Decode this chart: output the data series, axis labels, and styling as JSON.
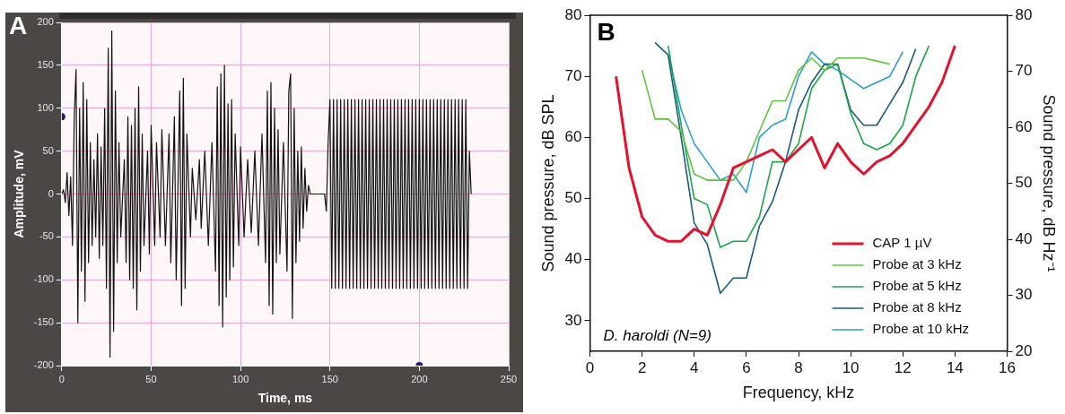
{
  "chart_data": [
    {
      "type": "line",
      "xlabel": "Time, ms",
      "ylabel": "Amplitude, mV",
      "xlim": [
        0,
        250
      ],
      "xticks": [
        0,
        50,
        100,
        150,
        200,
        250
      ],
      "ylim": [
        -200,
        200
      ],
      "yticks": [
        -200,
        -150,
        -100,
        -50,
        0,
        50,
        100,
        150,
        200
      ],
      "grid": true,
      "marker": "none",
      "annotations": [
        "A"
      ],
      "series": [
        {
          "color": "#111111",
          "x": [
            0,
            1,
            2,
            3,
            4,
            5,
            6,
            7,
            8,
            9,
            10,
            11,
            12,
            13,
            14,
            15,
            16,
            17,
            18,
            19,
            20,
            21,
            22,
            23,
            24,
            25,
            26,
            27,
            28,
            29,
            30,
            31,
            32,
            33,
            35,
            36,
            37,
            38,
            39,
            40,
            41,
            42,
            43,
            44,
            45,
            46,
            48,
            49,
            50,
            52,
            53,
            55,
            56,
            58,
            60,
            61,
            63,
            64,
            66,
            67,
            68,
            69,
            70,
            72,
            73,
            75,
            77,
            78,
            80,
            82,
            84,
            86,
            87,
            88,
            89,
            90,
            91,
            92,
            93,
            94,
            95,
            96,
            97,
            99,
            100,
            102,
            104,
            106,
            108,
            110,
            112,
            114,
            115,
            116,
            117,
            118,
            119,
            120,
            121,
            122,
            124,
            126,
            127,
            128,
            129,
            130,
            131,
            132,
            133,
            134,
            135,
            136,
            137,
            138,
            139,
            147,
            148,
            149,
            150,
            151,
            152,
            153,
            154,
            155,
            156,
            157,
            158,
            159,
            160,
            161,
            162,
            163,
            164,
            165,
            166,
            167,
            168,
            169,
            170,
            171,
            172,
            173,
            174,
            175,
            176,
            177,
            178,
            179,
            180,
            181,
            182,
            183,
            184,
            185,
            186,
            187,
            188,
            189,
            190,
            191,
            192,
            193,
            194,
            195,
            196,
            197,
            198,
            199,
            200,
            201,
            202,
            203,
            204,
            205,
            206,
            207,
            208,
            209,
            210,
            211,
            212,
            213,
            214,
            215,
            216,
            217,
            218,
            219,
            220,
            221,
            222,
            223,
            224,
            225,
            226,
            227,
            228,
            229
          ],
          "values": [
            0,
            5,
            -10,
            25,
            -25,
            20,
            -60,
            90,
            145,
            -150,
            100,
            -90,
            130,
            -125,
            110,
            -80,
            60,
            -60,
            40,
            -50,
            70,
            -75,
            55,
            -60,
            100,
            -110,
            170,
            -190,
            190,
            -160,
            120,
            -80,
            60,
            -50,
            40,
            -80,
            90,
            -100,
            80,
            -110,
            100,
            -135,
            125,
            -90,
            70,
            -60,
            50,
            -70,
            80,
            -60,
            60,
            -50,
            75,
            -60,
            70,
            -80,
            90,
            -100,
            120,
            -130,
            135,
            -110,
            70,
            -50,
            30,
            -30,
            40,
            -40,
            50,
            -60,
            60,
            -90,
            125,
            -130,
            140,
            -155,
            150,
            -120,
            105,
            -100,
            110,
            -85,
            70,
            -60,
            55,
            -50,
            40,
            -45,
            50,
            -60,
            70,
            -80,
            120,
            -130,
            130,
            -140,
            100,
            -80,
            75,
            -70,
            60,
            -90,
            120,
            140,
            -145,
            100,
            -80,
            50,
            -55,
            55,
            -40,
            30,
            -20,
            10,
            0,
            0,
            -20,
            60,
            110,
            -110,
            110,
            -110,
            110,
            -110,
            110,
            -110,
            110,
            -110,
            110,
            -110,
            110,
            -110,
            110,
            -110,
            110,
            -110,
            110,
            -110,
            110,
            -110,
            110,
            -110,
            110,
            -110,
            110,
            -110,
            110,
            -110,
            110,
            -110,
            110,
            -110,
            110,
            -110,
            110,
            -110,
            110,
            -110,
            110,
            -110,
            110,
            -110,
            110,
            -110,
            110,
            -110,
            110,
            -110,
            110,
            -110,
            110,
            -110,
            110,
            -110,
            110,
            -110,
            110,
            -110,
            110,
            -110,
            110,
            -110,
            110,
            -110,
            110,
            -110,
            110,
            -110,
            110,
            -110,
            110,
            -110,
            110,
            -110,
            110,
            -110,
            50,
            0
          ]
        },
        {
          "type": "scatter",
          "marker": "circle",
          "color": "#2a1a6e",
          "x": [
            0,
            200
          ],
          "values": [
            90,
            -200
          ]
        }
      ]
    },
    {
      "type": "line",
      "xlabel": "Frequency, kHz",
      "ylabel": "Sound pressure, dB SPL",
      "y2label": "Sound pressure, dB Hz⁻¹",
      "xlim": [
        0,
        16
      ],
      "xticks": [
        0,
        2,
        4,
        6,
        8,
        10,
        12,
        14,
        16
      ],
      "ylim": [
        25,
        80
      ],
      "yticks": [
        30,
        40,
        50,
        60,
        70,
        80
      ],
      "y2lim": [
        20,
        80
      ],
      "y2ticks": [
        20,
        30,
        40,
        50,
        60,
        70,
        80
      ],
      "grid": false,
      "legend": "bottom right",
      "marker": "none",
      "annotations": [
        "B",
        "D. haroldi (N=9)"
      ],
      "series": [
        {
          "name": "CAP 1 µV",
          "color": "#e3122d",
          "x": [
            1,
            1.5,
            2,
            2.5,
            3,
            3.5,
            4,
            4.5,
            5,
            5.5,
            6,
            6.5,
            7,
            7.5,
            8,
            8.5,
            9,
            9.5,
            10,
            10.5,
            11,
            11.5,
            12,
            12.5,
            13,
            13.5,
            14
          ],
          "values": [
            70,
            55,
            47,
            44,
            43,
            43,
            45,
            44,
            49,
            55,
            56,
            57,
            58,
            56,
            58,
            60,
            55,
            59,
            56,
            54,
            56,
            57,
            59,
            62,
            65,
            69,
            75
          ]
        },
        {
          "name": "Probe at 3 kHz",
          "color": "#5cc43c",
          "x": [
            2,
            2.5,
            3,
            3.5,
            4,
            4.5,
            5,
            5.5,
            6,
            6.5,
            7,
            7.5,
            8,
            8.5,
            9,
            9.5,
            10,
            10.5,
            11,
            11.5
          ],
          "values": [
            71,
            63,
            63,
            61,
            54,
            53,
            53,
            53,
            56,
            61,
            66,
            66,
            71,
            73,
            71,
            73,
            73,
            73,
            72.5,
            72
          ]
        },
        {
          "name": "Probe at 5 kHz",
          "color": "#1aa648",
          "x": [
            3,
            3.5,
            4,
            4.5,
            5,
            5.5,
            6,
            6.5,
            7,
            7.5,
            8,
            8.5,
            9,
            9.5,
            10,
            10.5,
            11,
            11.5,
            12,
            12.5,
            13
          ],
          "values": [
            75,
            62,
            50,
            49,
            42,
            43,
            43,
            47,
            56,
            56,
            59,
            68,
            71,
            72,
            64,
            59,
            58,
            59,
            62,
            70,
            75
          ]
        },
        {
          "name": "Probe at 8 kHz",
          "color": "#1a5a80",
          "x": [
            2.5,
            3,
            3.5,
            4,
            4.5,
            5,
            5.5,
            6,
            6.5,
            7,
            7.5,
            8,
            8.5,
            9,
            9.5,
            10,
            10.5,
            11,
            11.5,
            12,
            12.5
          ],
          "values": [
            75.5,
            73.5,
            60,
            46,
            42.5,
            34.5,
            37,
            37,
            45.5,
            49.5,
            56,
            64.5,
            69,
            72,
            72,
            64.5,
            62,
            62,
            65.5,
            69,
            74.5
          ]
        },
        {
          "name": "Probe at 10 kHz",
          "color": "#2a9ed0",
          "x": [
            3,
            3.5,
            4,
            4.5,
            5,
            5.5,
            6,
            6.5,
            7,
            7.5,
            8,
            8.5,
            9,
            9.5,
            10,
            10.5,
            11,
            11.5,
            12
          ],
          "values": [
            73.5,
            64.5,
            59,
            56,
            53,
            54,
            51,
            60,
            62,
            63,
            70,
            74,
            72,
            71,
            69.5,
            68,
            69,
            70,
            74
          ]
        }
      ]
    }
  ]
}
